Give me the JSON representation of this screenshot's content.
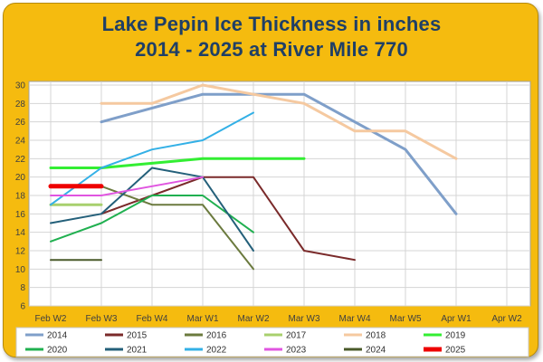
{
  "chart_data": {
    "type": "line",
    "title_line1": "Lake Pepin Ice Thickness in inches",
    "title_line2": "2014 - 2025 at River Mile 770",
    "categories": [
      "Feb W2",
      "Feb W3",
      "Feb W4",
      "Mar W1",
      "Mar W2",
      "Mar W3",
      "Mar W4",
      "Mar W5",
      "Apr W1",
      "Apr W2"
    ],
    "y_ticks": [
      6,
      8,
      10,
      12,
      14,
      16,
      18,
      20,
      22,
      24,
      26,
      28,
      30
    ],
    "ylim": [
      6,
      30
    ],
    "grid": true,
    "legend_position": "bottom",
    "series": [
      {
        "name": "2014",
        "color": "#7f9fc9",
        "width": 3,
        "values": [
          null,
          26,
          27.5,
          29,
          29,
          29,
          26,
          23,
          16,
          null
        ]
      },
      {
        "name": "2015",
        "color": "#7a2a2a",
        "width": 2,
        "values": [
          null,
          16,
          18,
          20,
          20,
          12,
          11,
          null,
          null,
          null
        ]
      },
      {
        "name": "2016",
        "color": "#6b7a3e",
        "width": 2,
        "values": [
          null,
          19,
          17,
          17,
          10,
          null,
          null,
          null,
          null,
          null
        ]
      },
      {
        "name": "2017",
        "color": "#a8d06e",
        "width": 3,
        "values": [
          17,
          17,
          null,
          null,
          null,
          null,
          null,
          null,
          null,
          null
        ]
      },
      {
        "name": "2018",
        "color": "#f5c9a0",
        "width": 3,
        "values": [
          null,
          28,
          28,
          30,
          29,
          28,
          25,
          25,
          22,
          null
        ]
      },
      {
        "name": "2019",
        "color": "#33ee33",
        "width": 3,
        "values": [
          21,
          21,
          21.5,
          22,
          22,
          22,
          null,
          null,
          null,
          null
        ]
      },
      {
        "name": "2020",
        "color": "#20b050",
        "width": 2,
        "values": [
          13,
          15,
          18,
          18,
          14,
          null,
          null,
          null,
          null,
          null
        ]
      },
      {
        "name": "2021",
        "color": "#24607a",
        "width": 2,
        "values": [
          15,
          16,
          21,
          20,
          12,
          null,
          null,
          null,
          null,
          null
        ]
      },
      {
        "name": "2022",
        "color": "#33b0e6",
        "width": 2,
        "values": [
          17,
          21,
          23,
          24,
          27,
          null,
          null,
          null,
          null,
          null
        ]
      },
      {
        "name": "2023",
        "color": "#e055e0",
        "width": 2,
        "values": [
          18,
          18,
          19,
          20,
          null,
          null,
          null,
          null,
          null,
          null
        ]
      },
      {
        "name": "2024",
        "color": "#4a5a2a",
        "width": 2,
        "values": [
          11,
          11,
          null,
          null,
          null,
          null,
          null,
          null,
          null,
          null
        ]
      },
      {
        "name": "2025",
        "color": "#ee0000",
        "width": 5,
        "values": [
          19,
          19,
          null,
          null,
          null,
          null,
          null,
          null,
          null,
          null
        ]
      }
    ]
  }
}
